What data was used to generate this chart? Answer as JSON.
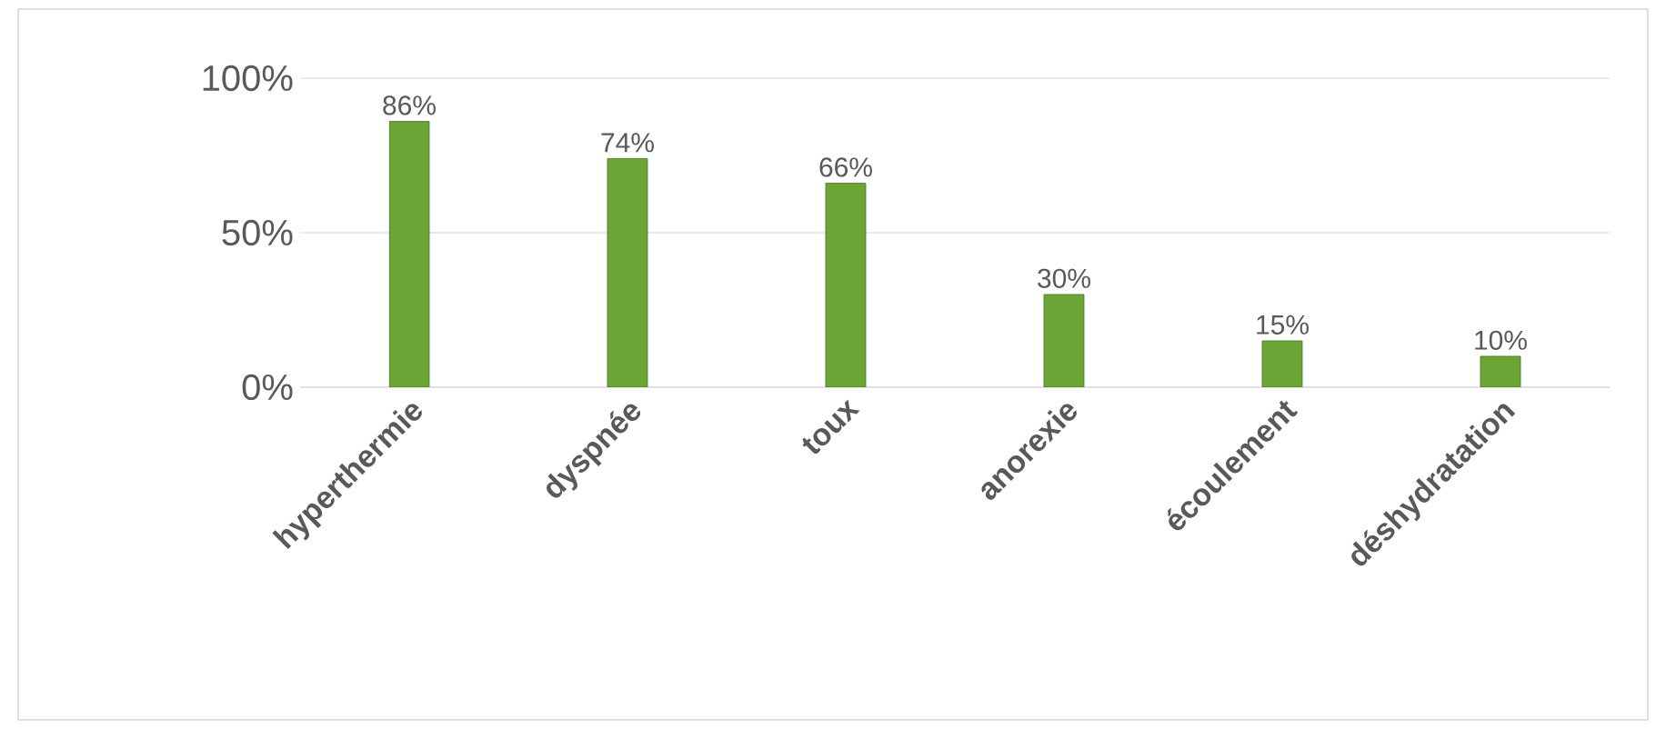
{
  "chart_data": {
    "type": "bar",
    "categories": [
      "hyperthermie",
      "dyspnée",
      "toux",
      "anorexie",
      "écoulement",
      "déshydratation"
    ],
    "values": [
      86,
      74,
      66,
      30,
      15,
      10
    ],
    "value_labels": [
      "86%",
      "74%",
      "66%",
      "30%",
      "15%",
      "10%"
    ],
    "color": "#6aa536",
    "ylim": [
      0,
      100
    ],
    "yticks": [
      {
        "value": 0,
        "label": "0%"
      },
      {
        "value": 50,
        "label": "50%"
      },
      {
        "value": 100,
        "label": "100%"
      }
    ],
    "grid": "y"
  }
}
